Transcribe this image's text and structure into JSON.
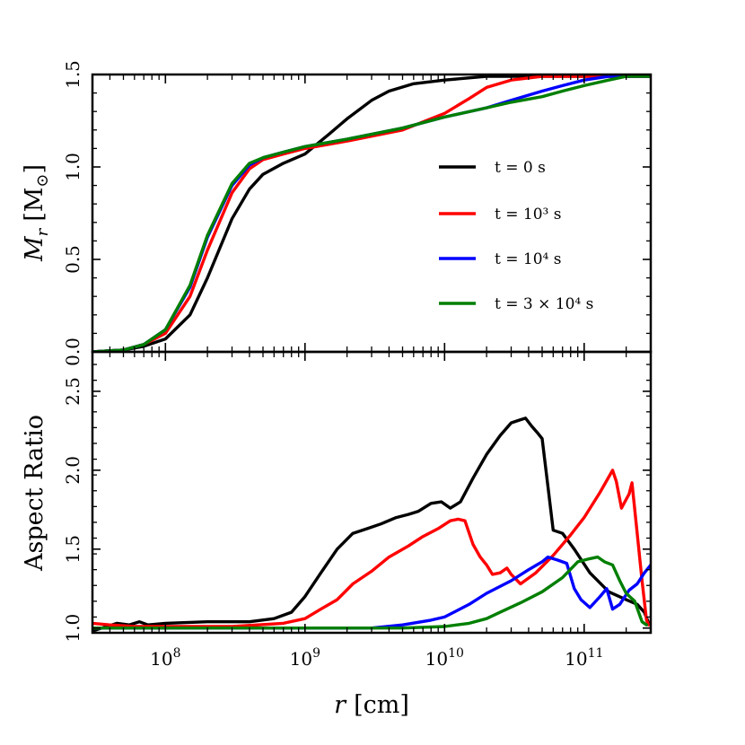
{
  "chart_data": [
    {
      "type": "line",
      "panel": "top",
      "ylabel_main": "M",
      "ylabel_sub": "r",
      "ylabel_unit": "[M",
      "ylabel_unit_sub": "⊙",
      "ylabel_unit_close": "]",
      "xscale": "log",
      "xlim": [
        30000000.0,
        300000000000.0
      ],
      "ylim": [
        0.0,
        1.5
      ],
      "yticks": [
        0.0,
        0.5,
        1.0,
        1.5
      ],
      "ytick_labels": [
        "0.0",
        "0.5",
        "1.0",
        "1.5"
      ],
      "legend_placement": "center-right",
      "series": [
        {
          "name": "t = 0 s",
          "color": "#000000",
          "x": [
            30000000.0,
            50000000.0,
            70000000.0,
            100000000.0,
            150000000.0,
            200000000.0,
            300000000.0,
            400000000.0,
            500000000.0,
            700000000.0,
            1000000000.0,
            1500000000.0,
            2000000000.0,
            3000000000.0,
            4000000000.0,
            6000000000.0,
            10000000000.0,
            20000000000.0,
            50000000000.0,
            100000000000.0,
            300000000000.0
          ],
          "y": [
            0.0,
            0.01,
            0.03,
            0.07,
            0.2,
            0.4,
            0.72,
            0.88,
            0.96,
            1.02,
            1.07,
            1.18,
            1.26,
            1.36,
            1.41,
            1.45,
            1.47,
            1.49,
            1.49,
            1.49,
            1.49
          ]
        },
        {
          "name": "t = 10³ s",
          "color": "#ff0000",
          "x": [
            30000000.0,
            50000000.0,
            70000000.0,
            100000000.0,
            150000000.0,
            200000000.0,
            300000000.0,
            400000000.0,
            500000000.0,
            700000000.0,
            1000000000.0,
            2000000000.0,
            5000000000.0,
            10000000000.0,
            15000000000.0,
            20000000000.0,
            30000000000.0,
            50000000000.0,
            100000000000.0,
            300000000000.0
          ],
          "y": [
            0.0,
            0.01,
            0.04,
            0.1,
            0.3,
            0.55,
            0.86,
            0.99,
            1.04,
            1.07,
            1.1,
            1.14,
            1.2,
            1.29,
            1.37,
            1.43,
            1.47,
            1.49,
            1.49,
            1.49
          ]
        },
        {
          "name": "t = 10⁴ s",
          "color": "#0000ff",
          "x": [
            30000000.0,
            50000000.0,
            70000000.0,
            100000000.0,
            150000000.0,
            200000000.0,
            300000000.0,
            400000000.0,
            500000000.0,
            700000000.0,
            1000000000.0,
            2000000000.0,
            5000000000.0,
            10000000000.0,
            20000000000.0,
            30000000000.0,
            50000000000.0,
            70000000000.0,
            100000000000.0,
            150000000000.0,
            300000000000.0
          ],
          "y": [
            0.0,
            0.01,
            0.04,
            0.12,
            0.35,
            0.62,
            0.9,
            1.01,
            1.05,
            1.08,
            1.11,
            1.15,
            1.21,
            1.27,
            1.32,
            1.36,
            1.41,
            1.44,
            1.47,
            1.49,
            1.49
          ]
        },
        {
          "name": "t = 3 × 10⁴ s",
          "color": "#007f00",
          "x": [
            30000000.0,
            50000000.0,
            70000000.0,
            100000000.0,
            150000000.0,
            200000000.0,
            300000000.0,
            400000000.0,
            500000000.0,
            700000000.0,
            1000000000.0,
            2000000000.0,
            5000000000.0,
            10000000000.0,
            20000000000.0,
            30000000000.0,
            50000000000.0,
            70000000000.0,
            100000000000.0,
            150000000000.0,
            200000000000.0,
            300000000000.0
          ],
          "y": [
            0.0,
            0.01,
            0.04,
            0.12,
            0.36,
            0.63,
            0.91,
            1.02,
            1.05,
            1.08,
            1.11,
            1.15,
            1.21,
            1.27,
            1.32,
            1.35,
            1.38,
            1.41,
            1.44,
            1.47,
            1.49,
            1.49
          ]
        }
      ]
    },
    {
      "type": "line",
      "panel": "bottom",
      "ylabel": "Aspect Ratio",
      "xlabel_main": "r",
      "xlabel_unit": "[cm]",
      "xscale": "log",
      "xlim": [
        30000000.0,
        300000000000.0
      ],
      "xticks": [
        100000000.0,
        1000000000.0,
        10000000000.0,
        100000000000.0
      ],
      "xtick_labels": [
        {
          "base": "10",
          "exp": "8"
        },
        {
          "base": "10",
          "exp": "9"
        },
        {
          "base": "10",
          "exp": "10"
        },
        {
          "base": "10",
          "exp": "11"
        }
      ],
      "ylim": [
        0.97,
        2.75
      ],
      "yticks": [
        1.0,
        1.5,
        2.0,
        2.5
      ],
      "ytick_labels": [
        "1.0",
        "1.5",
        "2.0",
        "2.5"
      ],
      "series": [
        {
          "name": "t = 0 s",
          "color": "#000000",
          "x": [
            30000000.0,
            35000000.0,
            45000000.0,
            55000000.0,
            65000000.0,
            75000000.0,
            100000000.0,
            200000000.0,
            400000000.0,
            600000000.0,
            800000000.0,
            1000000000.0,
            1300000000.0,
            1700000000.0,
            2200000000.0,
            2800000000.0,
            3500000000.0,
            4500000000.0,
            5500000000.0,
            6500000000.0,
            8000000000.0,
            9500000000.0,
            11000000000.0,
            13000000000.0,
            16000000000.0,
            20000000000.0,
            25000000000.0,
            30000000000.0,
            35000000000.0,
            38000000000.0,
            42000000000.0,
            46000000000.0,
            50000000000.0,
            55000000000.0,
            60000000000.0,
            70000000000.0,
            85000000000.0,
            110000000000.0,
            150000000000.0,
            200000000000.0,
            240000000000.0,
            270000000000.0,
            290000000000.0
          ],
          "y": [
            0.98,
            1.0,
            1.03,
            1.02,
            1.04,
            1.02,
            1.03,
            1.04,
            1.04,
            1.06,
            1.1,
            1.2,
            1.35,
            1.5,
            1.6,
            1.63,
            1.66,
            1.7,
            1.72,
            1.74,
            1.79,
            1.8,
            1.76,
            1.8,
            1.95,
            2.1,
            2.22,
            2.3,
            2.32,
            2.33,
            2.28,
            2.24,
            2.2,
            1.9,
            1.62,
            1.6,
            1.5,
            1.35,
            1.23,
            1.18,
            1.15,
            1.1,
            1.03
          ]
        },
        {
          "name": "t = 10³ s",
          "color": "#ff0000",
          "x": [
            30000000.0,
            40000000.0,
            60000000.0,
            100000000.0,
            300000000.0,
            700000000.0,
            1000000000.0,
            1300000000.0,
            1700000000.0,
            2200000000.0,
            3000000000.0,
            4000000000.0,
            5500000000.0,
            7000000000.0,
            9000000000.0,
            11000000000.0,
            12500000000.0,
            14000000000.0,
            16000000000.0,
            18000000000.0,
            20000000000.0,
            22000000000.0,
            25000000000.0,
            28000000000.0,
            30000000000.0,
            35000000000.0,
            45000000000.0,
            60000000000.0,
            80000000000.0,
            100000000000.0,
            130000000000.0,
            160000000000.0,
            170000000000.0,
            185000000000.0,
            210000000000.0,
            220000000000.0,
            240000000000.0,
            260000000000.0,
            280000000000.0,
            290000000000.0
          ],
          "y": [
            1.03,
            1.02,
            1.01,
            1.01,
            1.01,
            1.03,
            1.06,
            1.12,
            1.18,
            1.28,
            1.36,
            1.45,
            1.52,
            1.58,
            1.63,
            1.68,
            1.69,
            1.68,
            1.53,
            1.45,
            1.4,
            1.34,
            1.35,
            1.38,
            1.34,
            1.28,
            1.35,
            1.46,
            1.59,
            1.7,
            1.86,
            2.0,
            1.93,
            1.76,
            1.85,
            1.92,
            1.6,
            1.3,
            1.05,
            1.02
          ]
        },
        {
          "name": "t = 10⁴ s",
          "color": "#0000ff",
          "x": [
            30000000.0,
            100000000.0,
            1000000000.0,
            3000000000.0,
            5000000000.0,
            8000000000.0,
            10000000000.0,
            15000000000.0,
            20000000000.0,
            30000000000.0,
            40000000000.0,
            50000000000.0,
            55000000000.0,
            65000000000.0,
            75000000000.0,
            85000000000.0,
            95000000000.0,
            110000000000.0,
            130000000000.0,
            145000000000.0,
            160000000000.0,
            180000000000.0,
            210000000000.0,
            240000000000.0,
            270000000000.0,
            300000000000.0
          ],
          "y": [
            1.0,
            1.0,
            1.0,
            1.0,
            1.02,
            1.05,
            1.07,
            1.15,
            1.22,
            1.3,
            1.37,
            1.42,
            1.45,
            1.43,
            1.41,
            1.25,
            1.18,
            1.13,
            1.2,
            1.25,
            1.12,
            1.15,
            1.24,
            1.28,
            1.35,
            1.4
          ]
        },
        {
          "name": "t = 3 × 10⁴ s",
          "color": "#007f00",
          "x": [
            30000000.0,
            100000000.0,
            1000000000.0,
            5000000000.0,
            10000000000.0,
            15000000000.0,
            20000000000.0,
            25000000000.0,
            35000000000.0,
            50000000000.0,
            70000000000.0,
            90000000000.0,
            110000000000.0,
            125000000000.0,
            140000000000.0,
            160000000000.0,
            180000000000.0,
            200000000000.0,
            230000000000.0,
            260000000000.0,
            280000000000.0
          ],
          "y": [
            1.0,
            1.0,
            1.0,
            1.0,
            1.01,
            1.03,
            1.06,
            1.1,
            1.16,
            1.23,
            1.32,
            1.42,
            1.44,
            1.45,
            1.42,
            1.4,
            1.3,
            1.22,
            1.17,
            1.04,
            1.02
          ]
        }
      ]
    }
  ]
}
